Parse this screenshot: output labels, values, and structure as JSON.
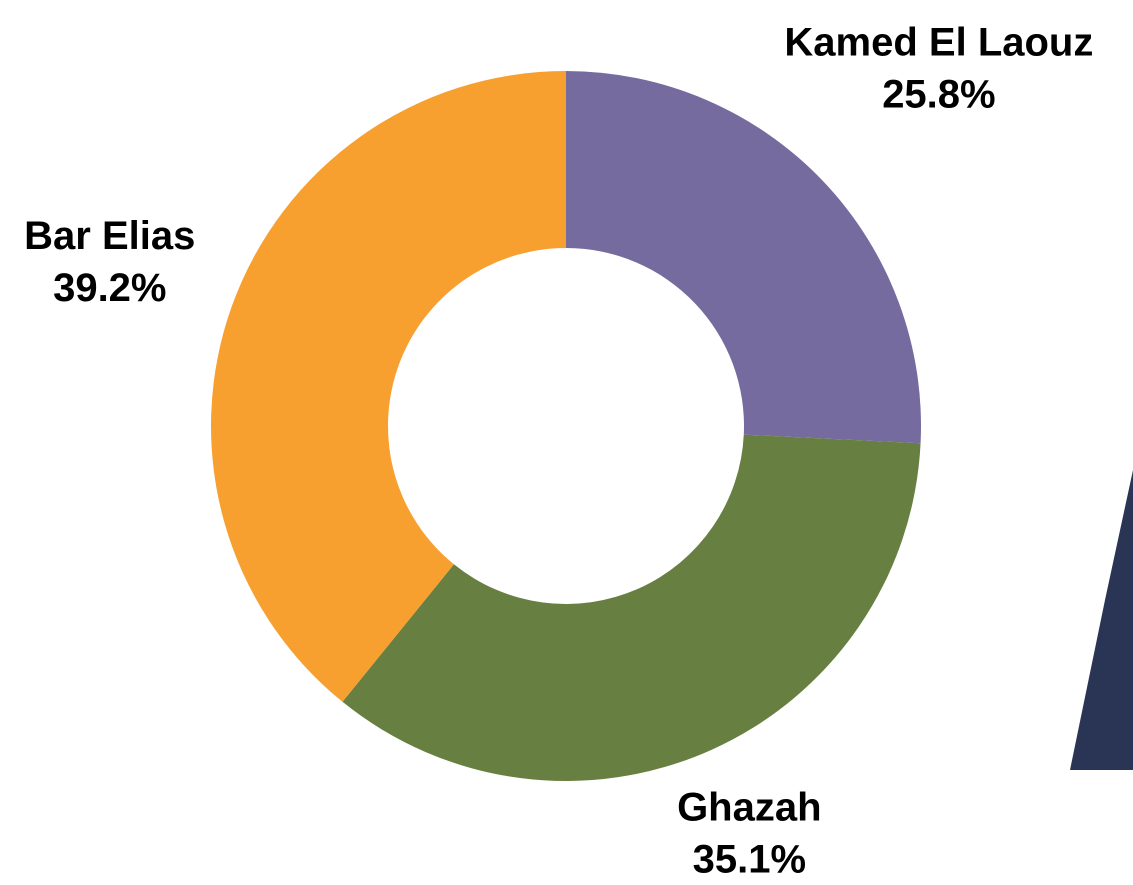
{
  "chart_data": {
    "type": "donut",
    "categories": [
      "Kamed El Laouz",
      "Ghazah",
      "Bar Elias"
    ],
    "values": [
      25.8,
      35.1,
      39.2
    ],
    "value_labels": [
      "25.8%",
      "35.1%",
      "39.2%"
    ],
    "colors": [
      "#756b9e",
      "#678042",
      "#f7a030"
    ]
  }
}
